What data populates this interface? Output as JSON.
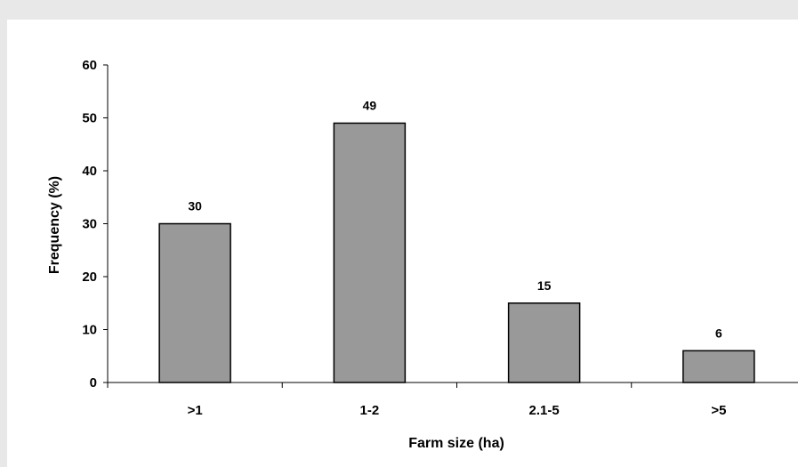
{
  "chart_data": {
    "type": "bar",
    "title": "",
    "xlabel": "Farm size (ha)",
    "ylabel": "Frequency (%)",
    "categories": [
      ">1",
      "1-2",
      "2.1-5",
      ">5"
    ],
    "values": [
      30,
      49,
      15,
      6
    ],
    "data_labels": [
      "30",
      "49",
      "15",
      "6"
    ],
    "ylim": [
      0,
      60
    ],
    "yticks": [
      "0",
      "10",
      "20",
      "30",
      "40",
      "50",
      "60"
    ],
    "bar_color": "#999999",
    "grid": false,
    "legend": "none"
  }
}
